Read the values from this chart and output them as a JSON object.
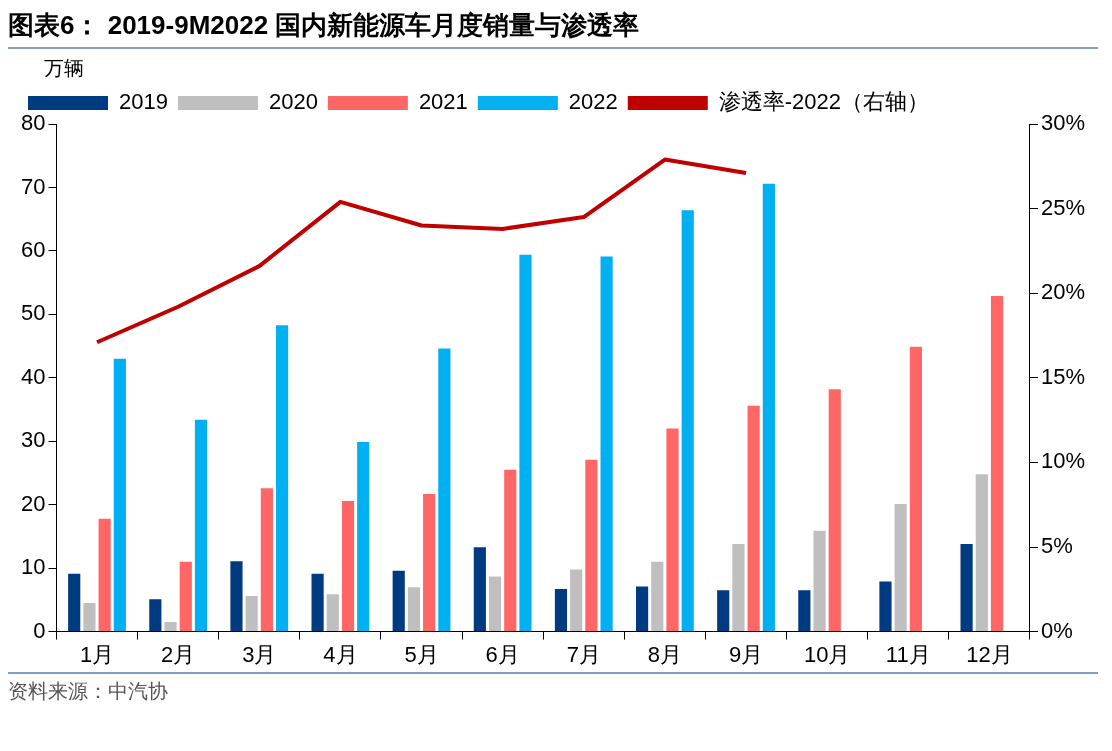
{
  "chart_data": {
    "type": "bar",
    "title": "图表6： 2019-9M2022 国内新能源车月度销量与渗透率",
    "ylabel": "万辆",
    "categories": [
      "1月",
      "2月",
      "3月",
      "4月",
      "5月",
      "6月",
      "7月",
      "8月",
      "9月",
      "10月",
      "11月",
      "12月"
    ],
    "series": [
      {
        "name": "2019",
        "color": "#003a80",
        "values": [
          9.1,
          5.1,
          11.1,
          9.1,
          9.6,
          13.3,
          6.7,
          7.1,
          6.5,
          6.5,
          7.9,
          13.8
        ]
      },
      {
        "name": "2020",
        "color": "#bfbfbf",
        "values": [
          4.5,
          1.5,
          5.6,
          5.9,
          7.0,
          8.7,
          9.8,
          11.0,
          13.8,
          15.9,
          20.1,
          24.8
        ]
      },
      {
        "name": "2021",
        "color": "#ff6666",
        "values": [
          17.8,
          11.0,
          22.6,
          20.6,
          21.7,
          25.5,
          27.1,
          32.0,
          35.6,
          38.2,
          44.9,
          52.9
        ]
      },
      {
        "name": "2022",
        "color": "#00b0f0",
        "values": [
          43.0,
          33.4,
          48.3,
          29.9,
          44.6,
          59.4,
          59.1,
          66.4,
          70.6,
          null,
          null,
          null
        ]
      },
      {
        "name": "渗透率-2022（右轴）",
        "type": "line",
        "axis": "y2",
        "color": "#c00000",
        "values": [
          17.1,
          19.2,
          21.6,
          25.4,
          24.0,
          23.8,
          24.5,
          27.9,
          27.1,
          null,
          null,
          null
        ]
      }
    ],
    "ylim": [
      0,
      80
    ],
    "yticks": [
      0,
      10,
      20,
      30,
      40,
      50,
      60,
      70,
      80
    ],
    "y2lim": [
      0,
      30
    ],
    "y2ticks": [
      {
        "value": 0,
        "label": "0%"
      },
      {
        "value": 5,
        "label": "5%"
      },
      {
        "value": 10,
        "label": "10%"
      },
      {
        "value": 15,
        "label": "15%"
      },
      {
        "value": 20,
        "label": "20%"
      },
      {
        "value": 25,
        "label": "25%"
      },
      {
        "value": 30,
        "label": "30%"
      }
    ],
    "grid": false,
    "legend": "top",
    "marker": "none",
    "annotations": [
      "资料来源：中汽协"
    ]
  }
}
